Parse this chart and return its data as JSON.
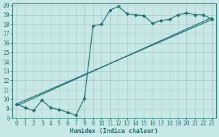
{
  "xlabel": "Humidex (Indice chaleur)",
  "xlim": [
    -0.5,
    23.5
  ],
  "ylim": [
    8,
    20.2
  ],
  "xticks": [
    0,
    1,
    2,
    3,
    4,
    5,
    6,
    7,
    8,
    9,
    10,
    11,
    12,
    13,
    14,
    15,
    16,
    17,
    18,
    19,
    20,
    21,
    22,
    23
  ],
  "yticks": [
    8,
    9,
    10,
    11,
    12,
    13,
    14,
    15,
    16,
    17,
    18,
    19,
    20
  ],
  "bg_color": "#c8e8e8",
  "grid_color": "#aacaca",
  "line_color": "#1a6b6b",
  "curve_x": [
    0,
    1,
    2,
    3,
    4,
    5,
    6,
    7,
    8,
    9,
    10,
    11,
    12,
    13,
    14,
    15,
    16,
    17,
    18,
    19,
    20,
    21,
    22,
    23
  ],
  "curve_y": [
    9.5,
    9.1,
    8.8,
    9.9,
    9.1,
    8.9,
    8.6,
    8.3,
    10.1,
    17.8,
    18.0,
    19.5,
    19.9,
    19.1,
    19.0,
    18.9,
    18.1,
    18.4,
    18.5,
    19.0,
    19.2,
    19.0,
    19.0,
    18.5
  ],
  "trend1_x": [
    0,
    23
  ],
  "trend1_y": [
    9.5,
    18.5
  ],
  "trend2_x": [
    0,
    23
  ],
  "trend2_y": [
    9.3,
    18.7
  ],
  "marker": "D",
  "marker_size": 2.5,
  "line_width": 0.9,
  "tick_fontsize": 5.5,
  "xlabel_fontsize": 6.5
}
